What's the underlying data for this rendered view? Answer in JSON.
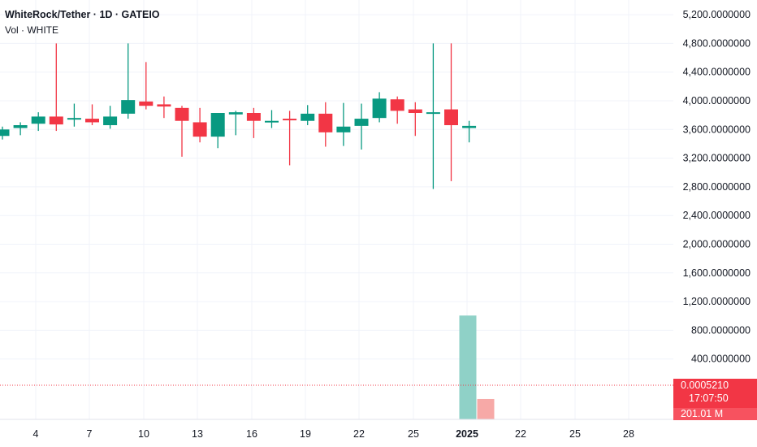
{
  "legend": {
    "title": "WhiteRock/Tether · 1D · GATEIO",
    "volume": "Vol · WHITE"
  },
  "colors": {
    "up": "#089981",
    "down": "#f23645",
    "vol_up": "#8fd1c7",
    "vol_down": "#f7a9a7",
    "grid": "#f0f3fa"
  },
  "price_label": {
    "value": "0.0005210",
    "countdown": "17:07:50"
  },
  "volume_label": {
    "value": "201.01 M"
  },
  "chart_data": {
    "type": "candlestick",
    "title": "WhiteRock/Tether · 1D · GATEIO",
    "y_axis": {
      "ticks": [
        5200,
        4800,
        4400,
        4000,
        3600,
        3200,
        2800,
        2400,
        2000,
        1600,
        1200,
        800,
        400
      ],
      "tick_labels": [
        "5,200.0000000",
        "4,800.0000000",
        "4,400.0000000",
        "4,000.0000000",
        "3,600.0000000",
        "3,200.0000000",
        "2,800.0000000",
        "2,400.0000000",
        "2,000.0000000",
        "1,600.0000000",
        "1,200.0000000",
        "800.0000000",
        "400.0000000"
      ],
      "partial_label": "0000"
    },
    "x_axis": {
      "tick_labels": [
        "4",
        "7",
        "10",
        "13",
        "16",
        "19",
        "22",
        "25",
        "2025",
        "22",
        "25",
        "28"
      ],
      "bold_labels": [
        "2025"
      ]
    },
    "candles": [
      {
        "o": 3510,
        "h": 3640,
        "l": 3460,
        "c": 3600
      },
      {
        "o": 3620,
        "h": 3700,
        "l": 3520,
        "c": 3660
      },
      {
        "o": 3680,
        "h": 3840,
        "l": 3580,
        "c": 3780
      },
      {
        "o": 3780,
        "h": 4800,
        "l": 3580,
        "c": 3670
      },
      {
        "o": 3740,
        "h": 3960,
        "l": 3640,
        "c": 3760
      },
      {
        "o": 3750,
        "h": 3950,
        "l": 3660,
        "c": 3700
      },
      {
        "o": 3660,
        "h": 3930,
        "l": 3610,
        "c": 3780
      },
      {
        "o": 3820,
        "h": 4800,
        "l": 3750,
        "c": 4010
      },
      {
        "o": 3990,
        "h": 4540,
        "l": 3880,
        "c": 3930
      },
      {
        "o": 3950,
        "h": 4060,
        "l": 3760,
        "c": 3920
      },
      {
        "o": 3900,
        "h": 3930,
        "l": 3220,
        "c": 3720
      },
      {
        "o": 3700,
        "h": 3900,
        "l": 3420,
        "c": 3500
      },
      {
        "o": 3500,
        "h": 3830,
        "l": 3340,
        "c": 3830
      },
      {
        "o": 3810,
        "h": 3860,
        "l": 3520,
        "c": 3840
      },
      {
        "o": 3830,
        "h": 3900,
        "l": 3480,
        "c": 3720
      },
      {
        "o": 3700,
        "h": 3870,
        "l": 3620,
        "c": 3720
      },
      {
        "o": 3750,
        "h": 3860,
        "l": 3100,
        "c": 3730
      },
      {
        "o": 3720,
        "h": 3940,
        "l": 3660,
        "c": 3820
      },
      {
        "o": 3820,
        "h": 3980,
        "l": 3360,
        "c": 3560
      },
      {
        "o": 3560,
        "h": 3970,
        "l": 3370,
        "c": 3640
      },
      {
        "o": 3650,
        "h": 3960,
        "l": 3320,
        "c": 3750
      },
      {
        "o": 3760,
        "h": 4120,
        "l": 3700,
        "c": 4030
      },
      {
        "o": 4020,
        "h": 4060,
        "l": 3680,
        "c": 3860
      },
      {
        "o": 3880,
        "h": 3980,
        "l": 3510,
        "c": 3830
      },
      {
        "o": 3820,
        "h": 4800,
        "l": 2770,
        "c": 3840
      },
      {
        "o": 3880,
        "h": 4800,
        "l": 2880,
        "c": 3660
      },
      {
        "o": 3620,
        "h": 3720,
        "l": 3420,
        "c": 3650
      }
    ],
    "volume_bars": [
      {
        "value": 970,
        "dir": "up"
      },
      {
        "value": 190,
        "dir": "down"
      }
    ]
  }
}
